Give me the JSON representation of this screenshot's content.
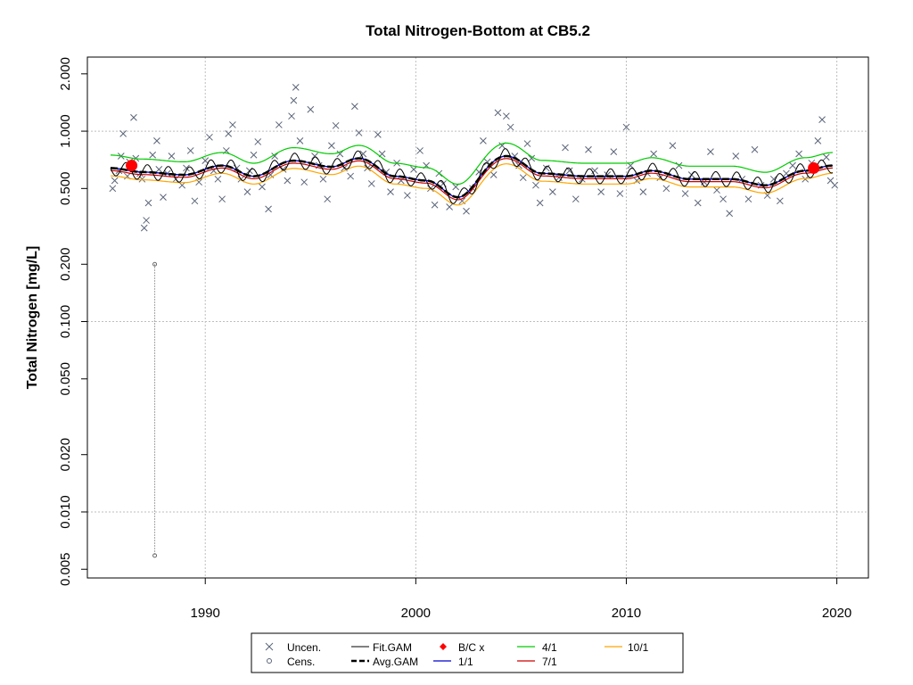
{
  "chart_data": {
    "type": "scatter",
    "title": "Total Nitrogen-Bottom at CB5.2",
    "xlabel": "",
    "ylabel": "Total Nitrogen [mg/L]",
    "yscale": "log",
    "xlim": [
      1984.4,
      2021.5
    ],
    "ylim": [
      0.0045,
      2.45
    ],
    "xticks": [
      1990,
      2000,
      2010,
      2020
    ],
    "yticks": [
      "0.005",
      "0.010",
      "0.020",
      "0.050",
      "0.100",
      "0.200",
      "0.500",
      "1.000",
      "2.000"
    ],
    "ygrid": [
      0.01,
      0.1,
      1.0
    ],
    "grid": true,
    "legend_position": "bottom",
    "colors": {
      "points": "#5a6478",
      "fit": "#000000",
      "avg": "#000000",
      "jan": "#0000cc",
      "apr": "#00cc00",
      "jul": "#cc0000",
      "oct": "#ffa500",
      "bc": "#ff0000",
      "grid": "#bebebe"
    },
    "legend": [
      {
        "label": "Uncen.",
        "symbol": "x"
      },
      {
        "label": "Cens.",
        "symbol": "circle"
      },
      {
        "label": "Fit.GAM",
        "symbol": "line"
      },
      {
        "label": "Avg.GAM",
        "symbol": "dashed-line"
      },
      {
        "label": "B/C x",
        "symbol": "diamond"
      },
      {
        "label": "1/1",
        "symbol": "line"
      },
      {
        "label": "4/1",
        "symbol": "line"
      },
      {
        "label": "7/1",
        "symbol": "line"
      },
      {
        "label": "10/1",
        "symbol": "line"
      }
    ],
    "bc_points": [
      {
        "x": 1986.5,
        "y": 0.66
      },
      {
        "x": 2018.9,
        "y": 0.64
      }
    ],
    "censored": [
      {
        "x": 1987.6,
        "low": 0.0059,
        "high": 0.2
      }
    ],
    "avg_gam": {
      "x": [
        1985.5,
        1987,
        1989,
        1990.8,
        1992.3,
        1994.2,
        1996,
        1997.3,
        1999,
        2000.5,
        2002,
        2004.3,
        2006,
        2008,
        2010,
        2011.2,
        2013,
        2015,
        2016.6,
        2018.5,
        2019.8
      ],
      "y": [
        0.64,
        0.61,
        0.59,
        0.66,
        0.58,
        0.7,
        0.65,
        0.72,
        0.58,
        0.55,
        0.45,
        0.74,
        0.6,
        0.58,
        0.58,
        0.62,
        0.56,
        0.56,
        0.52,
        0.62,
        0.66
      ]
    },
    "seasonal_ratios": {
      "apr": 1.17,
      "jan": 1.0,
      "jul": 0.97,
      "oct": 0.91
    },
    "fit_gam_amplitude": 0.09,
    "uncensored_points": [
      {
        "x": 1985.6,
        "y": 0.5
      },
      {
        "x": 1985.7,
        "y": 0.55
      },
      {
        "x": 1985.9,
        "y": 0.62
      },
      {
        "x": 1986.0,
        "y": 0.74
      },
      {
        "x": 1986.1,
        "y": 0.97
      },
      {
        "x": 1986.3,
        "y": 0.58
      },
      {
        "x": 1986.4,
        "y": 0.69
      },
      {
        "x": 1986.6,
        "y": 1.18
      },
      {
        "x": 1986.7,
        "y": 0.72
      },
      {
        "x": 1986.9,
        "y": 0.6
      },
      {
        "x": 1987.0,
        "y": 0.56
      },
      {
        "x": 1987.1,
        "y": 0.31
      },
      {
        "x": 1987.2,
        "y": 0.34
      },
      {
        "x": 1987.3,
        "y": 0.42
      },
      {
        "x": 1987.5,
        "y": 0.75
      },
      {
        "x": 1987.7,
        "y": 0.89
      },
      {
        "x": 1987.8,
        "y": 0.63
      },
      {
        "x": 1988.0,
        "y": 0.45
      },
      {
        "x": 1988.2,
        "y": 0.6
      },
      {
        "x": 1988.4,
        "y": 0.74
      },
      {
        "x": 1988.6,
        "y": 0.56
      },
      {
        "x": 1988.9,
        "y": 0.52
      },
      {
        "x": 1989.1,
        "y": 0.64
      },
      {
        "x": 1989.3,
        "y": 0.79
      },
      {
        "x": 1989.5,
        "y": 0.43
      },
      {
        "x": 1989.7,
        "y": 0.54
      },
      {
        "x": 1990.0,
        "y": 0.7
      },
      {
        "x": 1990.2,
        "y": 0.93
      },
      {
        "x": 1990.4,
        "y": 0.62
      },
      {
        "x": 1990.6,
        "y": 0.56
      },
      {
        "x": 1990.8,
        "y": 0.44
      },
      {
        "x": 1991.0,
        "y": 0.79
      },
      {
        "x": 1991.1,
        "y": 0.97
      },
      {
        "x": 1991.3,
        "y": 1.08
      },
      {
        "x": 1991.5,
        "y": 0.64
      },
      {
        "x": 1991.7,
        "y": 0.56
      },
      {
        "x": 1992.0,
        "y": 0.48
      },
      {
        "x": 1992.1,
        "y": 0.62
      },
      {
        "x": 1992.3,
        "y": 0.75
      },
      {
        "x": 1992.5,
        "y": 0.88
      },
      {
        "x": 1992.7,
        "y": 0.51
      },
      {
        "x": 1993.0,
        "y": 0.39
      },
      {
        "x": 1993.1,
        "y": 0.59
      },
      {
        "x": 1993.3,
        "y": 0.74
      },
      {
        "x": 1993.5,
        "y": 1.08
      },
      {
        "x": 1993.7,
        "y": 0.63
      },
      {
        "x": 1993.9,
        "y": 0.55
      },
      {
        "x": 1994.1,
        "y": 1.2
      },
      {
        "x": 1994.2,
        "y": 1.45
      },
      {
        "x": 1994.3,
        "y": 1.7
      },
      {
        "x": 1994.5,
        "y": 0.89
      },
      {
        "x": 1994.7,
        "y": 0.54
      },
      {
        "x": 1995.0,
        "y": 1.3
      },
      {
        "x": 1995.2,
        "y": 0.74
      },
      {
        "x": 1995.4,
        "y": 0.66
      },
      {
        "x": 1995.6,
        "y": 0.56
      },
      {
        "x": 1995.8,
        "y": 0.44
      },
      {
        "x": 1996.0,
        "y": 0.84
      },
      {
        "x": 1996.2,
        "y": 1.07
      },
      {
        "x": 1996.4,
        "y": 0.76
      },
      {
        "x": 1996.6,
        "y": 0.64
      },
      {
        "x": 1996.9,
        "y": 0.58
      },
      {
        "x": 1997.1,
        "y": 1.35
      },
      {
        "x": 1997.3,
        "y": 0.98
      },
      {
        "x": 1997.5,
        "y": 0.76
      },
      {
        "x": 1997.7,
        "y": 0.64
      },
      {
        "x": 1997.9,
        "y": 0.53
      },
      {
        "x": 1998.2,
        "y": 0.96
      },
      {
        "x": 1998.4,
        "y": 0.76
      },
      {
        "x": 1998.6,
        "y": 0.61
      },
      {
        "x": 1998.8,
        "y": 0.48
      },
      {
        "x": 1999.1,
        "y": 0.68
      },
      {
        "x": 1999.3,
        "y": 0.55
      },
      {
        "x": 1999.6,
        "y": 0.46
      },
      {
        "x": 1999.9,
        "y": 0.63
      },
      {
        "x": 2000.2,
        "y": 0.79
      },
      {
        "x": 2000.5,
        "y": 0.66
      },
      {
        "x": 2000.7,
        "y": 0.5
      },
      {
        "x": 2000.9,
        "y": 0.41
      },
      {
        "x": 2001.1,
        "y": 0.6
      },
      {
        "x": 2001.3,
        "y": 0.53
      },
      {
        "x": 2001.6,
        "y": 0.4
      },
      {
        "x": 2001.9,
        "y": 0.51
      },
      {
        "x": 2002.2,
        "y": 0.43
      },
      {
        "x": 2002.4,
        "y": 0.38
      },
      {
        "x": 2002.7,
        "y": 0.5
      },
      {
        "x": 2003.0,
        "y": 0.61
      },
      {
        "x": 2003.2,
        "y": 0.89
      },
      {
        "x": 2003.4,
        "y": 0.69
      },
      {
        "x": 2003.7,
        "y": 0.59
      },
      {
        "x": 2003.9,
        "y": 1.25
      },
      {
        "x": 2004.1,
        "y": 0.84
      },
      {
        "x": 2004.3,
        "y": 1.2
      },
      {
        "x": 2004.5,
        "y": 1.05
      },
      {
        "x": 2004.7,
        "y": 0.74
      },
      {
        "x": 2004.9,
        "y": 0.66
      },
      {
        "x": 2005.1,
        "y": 0.57
      },
      {
        "x": 2005.3,
        "y": 0.86
      },
      {
        "x": 2005.5,
        "y": 0.72
      },
      {
        "x": 2005.7,
        "y": 0.52
      },
      {
        "x": 2005.9,
        "y": 0.42
      },
      {
        "x": 2006.2,
        "y": 0.64
      },
      {
        "x": 2006.5,
        "y": 0.48
      },
      {
        "x": 2006.8,
        "y": 0.57
      },
      {
        "x": 2007.1,
        "y": 0.82
      },
      {
        "x": 2007.3,
        "y": 0.62
      },
      {
        "x": 2007.6,
        "y": 0.44
      },
      {
        "x": 2007.9,
        "y": 0.56
      },
      {
        "x": 2008.2,
        "y": 0.8
      },
      {
        "x": 2008.5,
        "y": 0.62
      },
      {
        "x": 2008.8,
        "y": 0.48
      },
      {
        "x": 2009.1,
        "y": 0.59
      },
      {
        "x": 2009.4,
        "y": 0.78
      },
      {
        "x": 2009.7,
        "y": 0.47
      },
      {
        "x": 2010.0,
        "y": 1.05
      },
      {
        "x": 2010.2,
        "y": 0.66
      },
      {
        "x": 2010.5,
        "y": 0.55
      },
      {
        "x": 2010.8,
        "y": 0.48
      },
      {
        "x": 2011.0,
        "y": 0.6
      },
      {
        "x": 2011.3,
        "y": 0.76
      },
      {
        "x": 2011.6,
        "y": 0.57
      },
      {
        "x": 2011.9,
        "y": 0.5
      },
      {
        "x": 2012.2,
        "y": 0.84
      },
      {
        "x": 2012.5,
        "y": 0.66
      },
      {
        "x": 2012.8,
        "y": 0.47
      },
      {
        "x": 2013.1,
        "y": 0.59
      },
      {
        "x": 2013.4,
        "y": 0.42
      },
      {
        "x": 2013.7,
        "y": 0.54
      },
      {
        "x": 2014.0,
        "y": 0.78
      },
      {
        "x": 2014.3,
        "y": 0.49
      },
      {
        "x": 2014.6,
        "y": 0.44
      },
      {
        "x": 2014.9,
        "y": 0.37
      },
      {
        "x": 2015.2,
        "y": 0.74
      },
      {
        "x": 2015.5,
        "y": 0.56
      },
      {
        "x": 2015.8,
        "y": 0.44
      },
      {
        "x": 2016.1,
        "y": 0.8
      },
      {
        "x": 2016.4,
        "y": 0.52
      },
      {
        "x": 2016.7,
        "y": 0.46
      },
      {
        "x": 2017.0,
        "y": 0.56
      },
      {
        "x": 2017.3,
        "y": 0.43
      },
      {
        "x": 2017.6,
        "y": 0.6
      },
      {
        "x": 2017.9,
        "y": 0.66
      },
      {
        "x": 2018.2,
        "y": 0.76
      },
      {
        "x": 2018.5,
        "y": 0.56
      },
      {
        "x": 2018.8,
        "y": 0.68
      },
      {
        "x": 2019.1,
        "y": 0.89
      },
      {
        "x": 2019.3,
        "y": 1.15
      },
      {
        "x": 2019.5,
        "y": 0.73
      },
      {
        "x": 2019.7,
        "y": 0.55
      },
      {
        "x": 2019.9,
        "y": 0.52
      }
    ]
  }
}
